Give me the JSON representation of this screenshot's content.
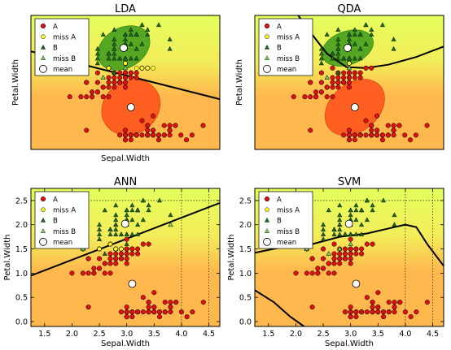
{
  "figure": {
    "legend_labels": [
      "A",
      "miss A",
      "B",
      "miss B",
      "mean"
    ],
    "colors": {
      "class_a": "#e01010",
      "class_b": "#1f6a1f",
      "miss_a": "#ffff22",
      "miss_b": "#7fcf60",
      "mean": "#ffffff",
      "field_a": "#ffb84d",
      "field_b": "#e4ff5c",
      "ellipse_a": "#ff4d1a",
      "ellipse_b": "#3a9a1a"
    }
  },
  "chart_data": [
    {
      "type": "scatter",
      "title": "LDA",
      "xlabel": "Sepal.Width",
      "ylabel": "Petal.Width",
      "xlim": [
        1.3,
        4.7
      ],
      "ylim": [
        -0.1,
        2.7
      ],
      "show_ticks": false,
      "legend_position": "top-left",
      "boundary": [
        [
          1.3,
          1.95
        ],
        [
          4.7,
          0.95
        ]
      ]
    },
    {
      "type": "scatter",
      "title": "QDA",
      "xlabel": "",
      "ylabel": "Petal.Width",
      "xlim": [
        1.3,
        4.7
      ],
      "ylim": [
        -0.1,
        2.7
      ],
      "show_ticks": false,
      "legend_position": "top-left",
      "boundary": [
        [
          2.05,
          2.75
        ],
        [
          2.3,
          2.35
        ],
        [
          2.6,
          1.9
        ],
        [
          2.95,
          1.62
        ],
        [
          3.3,
          1.6
        ],
        [
          3.7,
          1.67
        ],
        [
          4.2,
          1.83
        ],
        [
          4.7,
          2.05
        ]
      ]
    },
    {
      "type": "scatter",
      "title": "ANN",
      "xlabel": "Sepal.Width",
      "ylabel": "Petal.Width",
      "xlim": [
        1.25,
        4.7
      ],
      "ylim": [
        -0.1,
        2.75
      ],
      "show_ticks": true,
      "x_ticks": [
        "1.5",
        "2.0",
        "2.5",
        "3.0",
        "3.5",
        "4.0",
        "4.5"
      ],
      "y_ticks": [
        "0.0",
        "0.5",
        "1.0",
        "1.5",
        "2.0",
        "2.5"
      ],
      "legend_position": "top-left",
      "boundary": [
        [
          1.25,
          0.95
        ],
        [
          4.7,
          2.45
        ]
      ]
    },
    {
      "type": "scatter",
      "title": "SVM",
      "xlabel": "Sepal.Width",
      "ylabel": "Petal.Width",
      "xlim": [
        1.25,
        4.7
      ],
      "ylim": [
        -0.1,
        2.75
      ],
      "show_ticks": true,
      "x_ticks": [
        "1.5",
        "2.0",
        "2.5",
        "3.0",
        "3.5",
        "4.0",
        "4.5"
      ],
      "y_ticks": [
        "0.0",
        "0.5",
        "1.0",
        "1.5",
        "2.0",
        "2.5"
      ],
      "legend_position": "top-left",
      "boundary": [
        [
          1.25,
          1.42
        ],
        [
          1.8,
          1.55
        ],
        [
          2.3,
          1.6
        ],
        [
          2.8,
          1.75
        ],
        [
          3.3,
          1.82
        ],
        [
          3.8,
          1.95
        ],
        [
          4.0,
          2.0
        ],
        [
          4.2,
          1.95
        ],
        [
          4.4,
          1.6
        ],
        [
          4.7,
          1.15
        ]
      ],
      "boundary2": [
        [
          1.25,
          0.65
        ],
        [
          1.6,
          0.4
        ],
        [
          1.9,
          0.1
        ],
        [
          2.15,
          -0.1
        ]
      ]
    }
  ],
  "iris_points": {
    "class_a": [
      [
        3.5,
        0.2
      ],
      [
        3.0,
        0.2
      ],
      [
        3.2,
        0.2
      ],
      [
        3.1,
        0.2
      ],
      [
        3.6,
        0.2
      ],
      [
        3.9,
        0.4
      ],
      [
        3.4,
        0.3
      ],
      [
        3.4,
        0.2
      ],
      [
        2.9,
        0.2
      ],
      [
        3.1,
        0.1
      ],
      [
        3.7,
        0.2
      ],
      [
        3.4,
        0.2
      ],
      [
        3.0,
        0.1
      ],
      [
        3.0,
        0.1
      ],
      [
        4.0,
        0.2
      ],
      [
        4.4,
        0.4
      ],
      [
        3.9,
        0.4
      ],
      [
        3.5,
        0.3
      ],
      [
        3.8,
        0.3
      ],
      [
        3.8,
        0.3
      ],
      [
        3.4,
        0.2
      ],
      [
        3.7,
        0.4
      ],
      [
        3.6,
        0.2
      ],
      [
        3.3,
        0.5
      ],
      [
        3.4,
        0.2
      ],
      [
        3.0,
        0.2
      ],
      [
        3.4,
        0.4
      ],
      [
        3.5,
        0.2
      ],
      [
        3.4,
        0.2
      ],
      [
        3.2,
        0.2
      ],
      [
        3.1,
        0.2
      ],
      [
        3.4,
        0.4
      ],
      [
        4.1,
        0.1
      ],
      [
        4.2,
        0.2
      ],
      [
        3.1,
        0.2
      ],
      [
        3.2,
        0.2
      ],
      [
        3.5,
        0.2
      ],
      [
        3.6,
        0.1
      ],
      [
        3.0,
        0.2
      ],
      [
        3.4,
        0.2
      ],
      [
        3.5,
        0.3
      ],
      [
        2.3,
        0.3
      ],
      [
        3.2,
        0.2
      ],
      [
        3.5,
        0.6
      ],
      [
        3.8,
        0.4
      ],
      [
        3.0,
        0.3
      ],
      [
        3.8,
        0.2
      ],
      [
        3.2,
        0.2
      ],
      [
        3.7,
        0.2
      ],
      [
        3.3,
        0.2
      ],
      [
        3.2,
        1.4
      ],
      [
        3.2,
        1.5
      ],
      [
        3.1,
        1.5
      ],
      [
        2.3,
        1.3
      ],
      [
        2.8,
        1.5
      ],
      [
        2.8,
        1.3
      ],
      [
        3.3,
        1.6
      ],
      [
        2.4,
        1.0
      ],
      [
        2.9,
        1.3
      ],
      [
        2.7,
        1.4
      ],
      [
        2.0,
        1.0
      ],
      [
        3.0,
        1.5
      ],
      [
        2.2,
        1.0
      ],
      [
        2.9,
        1.4
      ],
      [
        2.9,
        1.3
      ],
      [
        3.1,
        1.4
      ],
      [
        3.0,
        1.5
      ],
      [
        2.7,
        1.0
      ],
      [
        2.2,
        1.5
      ],
      [
        2.5,
        1.1
      ],
      [
        2.8,
        1.3
      ],
      [
        2.5,
        1.5
      ],
      [
        2.8,
        1.2
      ],
      [
        2.9,
        1.3
      ],
      [
        3.0,
        1.4
      ],
      [
        2.8,
        1.4
      ],
      [
        3.0,
        1.7
      ],
      [
        2.9,
        1.5
      ],
      [
        2.6,
        1.0
      ],
      [
        2.4,
        1.1
      ],
      [
        2.4,
        1.0
      ],
      [
        2.7,
        1.2
      ],
      [
        2.7,
        1.6
      ],
      [
        3.0,
        1.5
      ],
      [
        3.4,
        1.6
      ],
      [
        3.1,
        1.5
      ],
      [
        2.3,
        1.3
      ],
      [
        3.0,
        1.3
      ],
      [
        2.5,
        1.3
      ],
      [
        2.6,
        1.2
      ],
      [
        3.0,
        1.4
      ],
      [
        2.6,
        1.2
      ],
      [
        2.3,
        1.0
      ],
      [
        2.7,
        1.3
      ],
      [
        3.0,
        1.2
      ],
      [
        2.9,
        1.3
      ],
      [
        2.9,
        1.3
      ],
      [
        2.5,
        1.1
      ],
      [
        2.8,
        1.3
      ]
    ],
    "class_b": [
      [
        3.3,
        2.5
      ],
      [
        2.7,
        1.9
      ],
      [
        3.0,
        2.1
      ],
      [
        2.9,
        1.8
      ],
      [
        3.0,
        2.2
      ],
      [
        3.0,
        2.1
      ],
      [
        2.5,
        1.7
      ],
      [
        2.9,
        1.8
      ],
      [
        2.5,
        1.8
      ],
      [
        3.6,
        2.5
      ],
      [
        3.2,
        2.0
      ],
      [
        2.7,
        1.9
      ],
      [
        3.0,
        2.1
      ],
      [
        2.5,
        2.0
      ],
      [
        2.8,
        2.4
      ],
      [
        3.2,
        2.3
      ],
      [
        3.0,
        1.8
      ],
      [
        3.8,
        2.2
      ],
      [
        2.6,
        2.3
      ],
      [
        2.2,
        1.5
      ],
      [
        3.2,
        2.3
      ],
      [
        2.8,
        2.0
      ],
      [
        2.8,
        2.0
      ],
      [
        2.7,
        1.8
      ],
      [
        3.3,
        2.1
      ],
      [
        3.2,
        1.8
      ],
      [
        2.8,
        1.8
      ],
      [
        3.0,
        1.8
      ],
      [
        2.8,
        2.1
      ],
      [
        3.0,
        1.6
      ],
      [
        2.8,
        1.9
      ],
      [
        3.8,
        2.0
      ],
      [
        2.8,
        2.2
      ],
      [
        2.8,
        1.5
      ],
      [
        2.6,
        1.4
      ],
      [
        3.0,
        2.3
      ],
      [
        3.4,
        2.4
      ],
      [
        3.1,
        1.8
      ],
      [
        3.0,
        1.8
      ],
      [
        3.1,
        2.1
      ],
      [
        3.1,
        2.4
      ],
      [
        3.1,
        2.3
      ],
      [
        2.7,
        1.9
      ],
      [
        3.2,
        2.3
      ],
      [
        3.3,
        2.5
      ],
      [
        3.0,
        2.3
      ],
      [
        2.5,
        1.9
      ],
      [
        3.0,
        2.0
      ],
      [
        3.4,
        2.3
      ],
      [
        3.0,
        1.8
      ]
    ],
    "mean_a": [
      3.1,
      0.78
    ],
    "mean_b": [
      2.97,
      2.02
    ],
    "misses": {
      "lda": {
        "a": [
          [
            3.5,
            1.6
          ],
          [
            3.3,
            1.6
          ],
          [
            2.7,
            1.6
          ],
          [
            3.4,
            1.6
          ],
          [
            3.0,
            1.7
          ],
          [
            3.2,
            1.6
          ]
        ],
        "b": [
          [
            2.2,
            1.5
          ],
          [
            2.6,
            1.4
          ],
          [
            3.0,
            1.6
          ]
        ]
      },
      "qda": {
        "a": [
          [
            3.0,
            1.7
          ]
        ],
        "b": [
          [
            2.2,
            1.5
          ],
          [
            2.6,
            1.4
          ],
          [
            3.0,
            1.6
          ]
        ]
      },
      "ann": {
        "a": [
          [
            2.5,
            1.5
          ],
          [
            2.2,
            1.5
          ],
          [
            2.8,
            1.5
          ],
          [
            2.7,
            1.6
          ],
          [
            2.9,
            1.5
          ]
        ],
        "b": [
          [
            2.2,
            1.5
          ],
          [
            3.8,
            2.0
          ]
        ]
      },
      "svm": {
        "a": [],
        "b": [
          [
            2.2,
            1.5
          ],
          [
            2.6,
            1.4
          ],
          [
            3.0,
            1.6
          ],
          [
            2.8,
            1.5
          ]
        ]
      }
    },
    "ellipses": {
      "lda": {
        "a": {
          "cx": 3.1,
          "cy": 0.78,
          "rx": 0.55,
          "ry": 0.55,
          "rot": -35
        },
        "b": {
          "cx": 2.97,
          "cy": 2.02,
          "rx": 0.5,
          "ry": 0.42,
          "rot": -30
        }
      },
      "qda": {
        "a": {
          "cx": 3.1,
          "cy": 0.78,
          "rx": 0.6,
          "ry": 0.5,
          "rot": -40
        },
        "b": {
          "cx": 2.97,
          "cy": 2.02,
          "rx": 0.48,
          "ry": 0.35,
          "rot": -20
        }
      }
    }
  }
}
